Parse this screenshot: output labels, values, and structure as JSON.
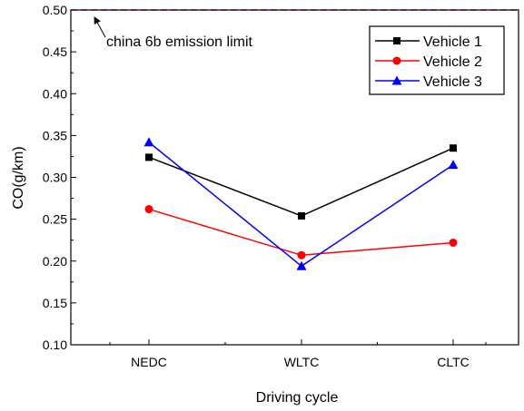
{
  "chart_data": {
    "type": "line",
    "categories": [
      "NEDC",
      "WLTC",
      "CLTC"
    ],
    "xlabel": "Driving cycle",
    "ylabel": "CO(g/km)",
    "ylim": [
      0.1,
      0.5
    ],
    "yticks": [
      "0.10",
      "0.15",
      "0.20",
      "0.25",
      "0.30",
      "0.35",
      "0.40",
      "0.45",
      "0.50"
    ],
    "grid": false,
    "legend_position": "top-right",
    "series": [
      {
        "name": "Vehicle 1",
        "values": [
          0.324,
          0.254,
          0.335
        ],
        "color": "#000000",
        "marker": "square"
      },
      {
        "name": "Vehicle 2",
        "values": [
          0.262,
          0.207,
          0.222
        ],
        "color": "#ff0000",
        "marker": "circle"
      },
      {
        "name": "Vehicle 3",
        "values": [
          0.342,
          0.194,
          0.315
        ],
        "color": "#0000ff",
        "marker": "triangle"
      }
    ],
    "reference_line": {
      "value": 0.5,
      "color": "#ff0000",
      "style": "dashed"
    },
    "annotation": {
      "text": "china 6b emission limit"
    }
  }
}
